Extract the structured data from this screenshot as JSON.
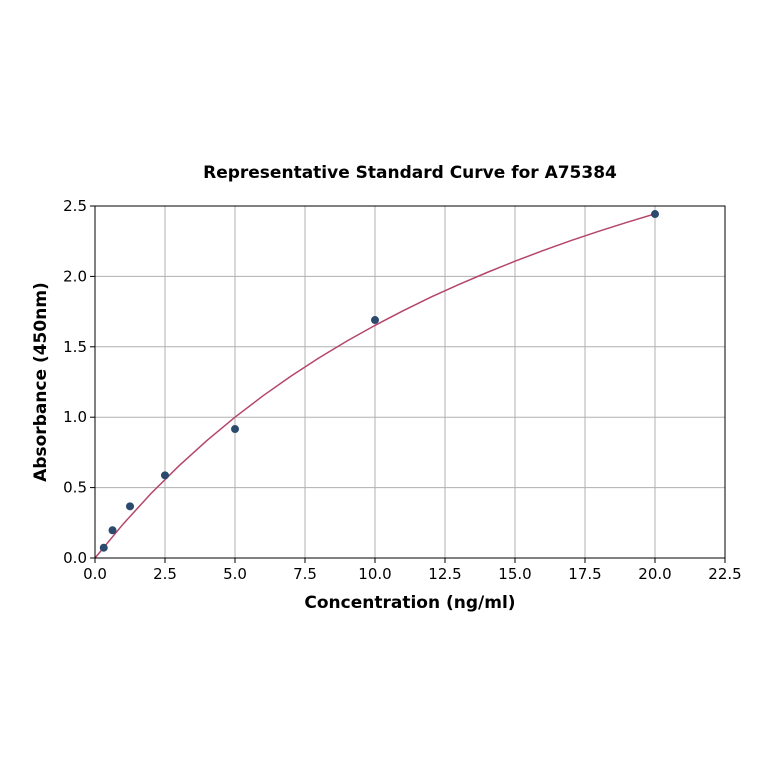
{
  "chart_data": {
    "type": "scatter",
    "title": "Representative Standard Curve for A75384",
    "xlabel": "Concentration (ng/ml)",
    "ylabel": "Absorbance (450nm)",
    "xlim": [
      0,
      22.5
    ],
    "ylim": [
      0,
      2.5
    ],
    "xticks": [
      "0.0",
      "2.5",
      "5.0",
      "7.5",
      "10.0",
      "12.5",
      "15.0",
      "17.5",
      "20.0",
      "22.5"
    ],
    "yticks": [
      "0.0",
      "0.5",
      "1.0",
      "1.5",
      "2.0",
      "2.5"
    ],
    "grid": true,
    "points": {
      "x": [
        0.3125,
        0.625,
        1.25,
        2.5,
        5,
        10,
        20
      ],
      "y": [
        0.073,
        0.197,
        0.367,
        0.587,
        0.916,
        1.69,
        2.443
      ]
    },
    "fit_curve": {
      "x": [
        0,
        1,
        2,
        3,
        4,
        5,
        6,
        7,
        8,
        9,
        10,
        11,
        12,
        13,
        14,
        15,
        16,
        17,
        18,
        19,
        20
      ],
      "y": [
        0,
        0.24,
        0.458,
        0.655,
        0.835,
        1.0,
        1.152,
        1.292,
        1.421,
        1.541,
        1.652,
        1.756,
        1.853,
        1.943,
        2.028,
        2.108,
        2.183,
        2.254,
        2.321,
        2.384,
        2.444
      ]
    },
    "colors": {
      "points": "#2c4a6e",
      "curve": "#b5456b",
      "grid": "#b0b0b0"
    }
  }
}
